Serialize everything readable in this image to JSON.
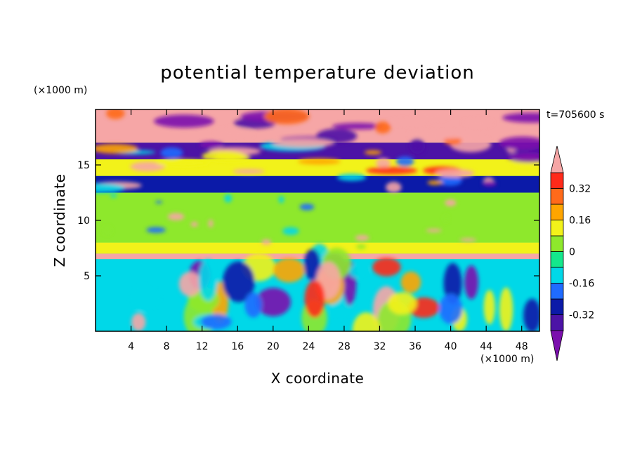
{
  "chart_data": {
    "type": "heatmap",
    "title": "potential temperature deviation",
    "xlabel": "X coordinate",
    "ylabel": "Z coordinate",
    "x_unit": "(×1000 m)",
    "y_unit": "(×1000 m)",
    "time_label": "t=705600 s",
    "xlim": [
      0,
      50
    ],
    "ylim": [
      0,
      20
    ],
    "x_ticks": [
      4,
      8,
      12,
      16,
      20,
      24,
      28,
      32,
      36,
      40,
      44,
      48
    ],
    "y_ticks": [
      5,
      10,
      15
    ],
    "colorbar": {
      "levels": [
        -0.4,
        -0.32,
        -0.24,
        -0.16,
        -0.08,
        0,
        0.08,
        0.16,
        0.24,
        0.32,
        0.4
      ],
      "labels": [
        "-0.32",
        "-0.16",
        "0",
        "0.16",
        "0.32"
      ],
      "label_values": [
        -0.32,
        -0.16,
        0,
        0.16,
        0.32
      ],
      "extend": "both",
      "colors": [
        "#7b0fad",
        "#4c13a6",
        "#0b1aa8",
        "#1f6bff",
        "#00d8e8",
        "#14e88c",
        "#8ee82c",
        "#f2f21a",
        "#ffa500",
        "#ff6a1a",
        "#ff2a1a",
        "#f6a6a6"
      ]
    },
    "field_bands": [
      {
        "z": [
          17.0,
          20.0
        ],
        "description_value": 0.4
      },
      {
        "z": [
          15.5,
          17.0
        ],
        "description_value": -0.4
      },
      {
        "z": [
          14.0,
          15.5
        ],
        "description_value": 0.1
      },
      {
        "z": [
          12.5,
          14.0
        ],
        "description_value": -0.25
      },
      {
        "z": [
          8.0,
          12.5
        ],
        "description_value": 0.0
      },
      {
        "z": [
          7.0,
          8.0
        ],
        "description_value": 0.08
      },
      {
        "z": [
          6.5,
          7.0
        ],
        "description_value": 0.4
      },
      {
        "z": [
          0.0,
          6.5
        ],
        "description_value": -0.1
      }
    ]
  }
}
